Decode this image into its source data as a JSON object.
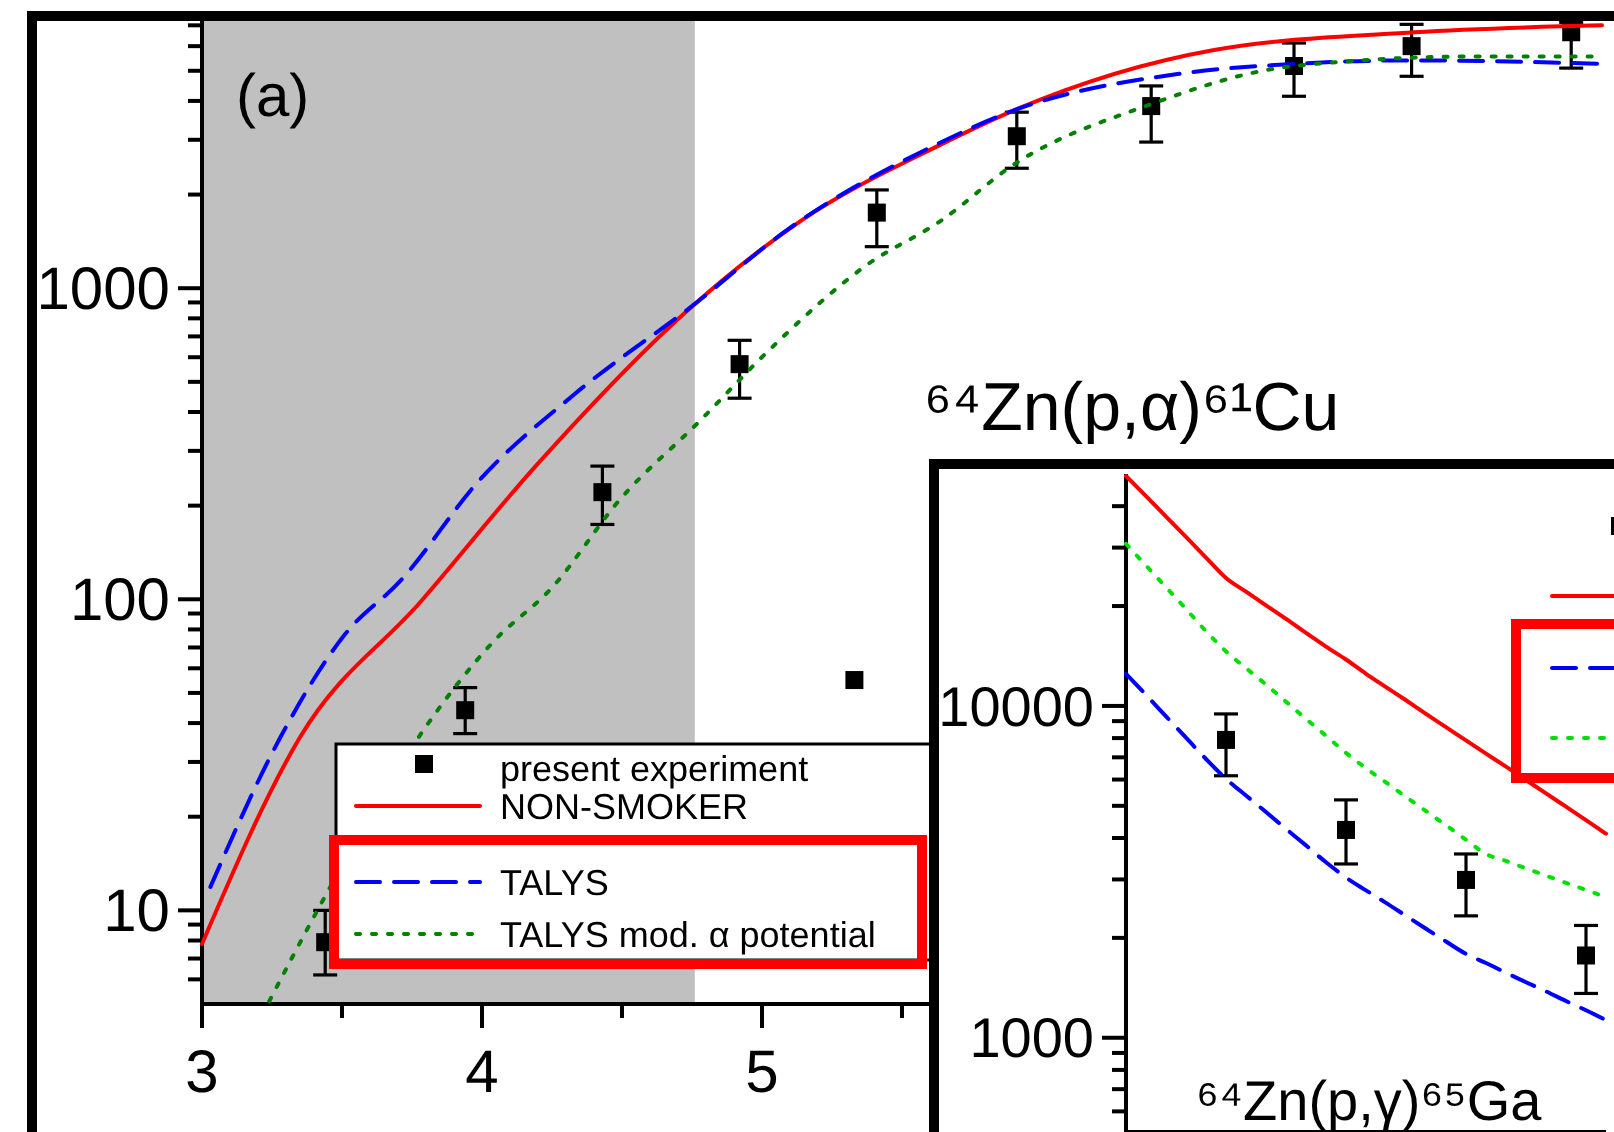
{
  "chart_data": [
    {
      "type": "line",
      "annotations": [
        "(a)",
        "⁶⁴Zn(p,α)⁶¹Cu"
      ],
      "log": "y",
      "legend": "bottom",
      "xlim": [
        3,
        8
      ],
      "xticks": [
        3,
        {
          "value": 3.5,
          "label": null
        },
        4,
        {
          "value": 4.5,
          "label": null
        },
        5,
        {
          "value": 5.5,
          "label": null
        }
      ],
      "ylim": [
        5,
        7500
      ],
      "yticks": [
        {
          "value": 6,
          "label": null
        },
        {
          "value": 7,
          "label": null
        },
        {
          "value": 8,
          "label": null
        },
        {
          "value": 9,
          "label": null
        },
        10,
        {
          "value": 20,
          "label": null
        },
        {
          "value": 30,
          "label": null
        },
        {
          "value": 40,
          "label": null
        },
        {
          "value": 50,
          "label": null
        },
        {
          "value": 60,
          "label": null
        },
        {
          "value": 70,
          "label": null
        },
        {
          "value": 80,
          "label": null
        },
        {
          "value": 90,
          "label": null
        },
        100,
        {
          "value": 200,
          "label": null
        },
        {
          "value": 300,
          "label": null
        },
        {
          "value": 400,
          "label": null
        },
        {
          "value": 500,
          "label": null
        },
        {
          "value": 600,
          "label": null
        },
        {
          "value": 700,
          "label": null
        },
        {
          "value": 800,
          "label": null
        },
        {
          "value": 900,
          "label": null
        },
        1000,
        {
          "value": 2000,
          "label": null
        },
        {
          "value": 3000,
          "label": null
        },
        {
          "value": 4000,
          "label": null
        },
        {
          "value": 5000,
          "label": null
        },
        {
          "value": 6000,
          "label": null
        },
        {
          "value": 7000,
          "label": null
        }
      ],
      "bands": [
        {
          "axis": "x",
          "from": 3,
          "to": 4.76,
          "color": "#c0c0c0"
        }
      ],
      "series": [
        {
          "type": "scatter",
          "name": "present experiment",
          "color": "#000000",
          "marker": "square",
          "x": [
            3.44,
            3.94,
            4.43,
            4.92,
            5.33,
            5.41,
            5.91,
            6.39,
            6.9,
            7.32,
            7.89
          ],
          "values": [
            7.9,
            44,
            221,
            570,
            55,
            1750,
            3080,
            3850,
            5180,
            6000,
            6650
          ],
          "errors": [
            [
              6.2,
              10
            ],
            [
              37,
              52
            ],
            [
              174,
              268
            ],
            [
              443,
              680
            ],
            null,
            [
              1360,
              2070
            ],
            [
              2430,
              3680
            ],
            [
              2950,
              4470
            ],
            [
              4140,
              6140
            ],
            [
              4800,
              7050
            ],
            [
              5100,
              7150
            ]
          ]
        },
        {
          "type": "line",
          "name": "NON-SMOKER",
          "color": "#ff0000",
          "line_style": "solid",
          "x": [
            3,
            3.35,
            3.78,
            4.19,
            4.76,
            5.14,
            5.64,
            5.9,
            6.61,
            7.33,
            8
          ],
          "values": [
            7.8,
            36,
            98,
            267,
            890,
            1650,
            2900,
            3730,
            5820,
            6650,
            7000
          ]
        },
        {
          "type": "line",
          "name": "TALYS",
          "color": "#0000ff",
          "line_style": "dashed",
          "x": [
            3.03,
            3.28,
            3.51,
            3.71,
            3.99,
            4.33,
            4.76,
            5.09,
            5.61,
            5.9,
            6.49,
            6.9,
            7.33,
            8
          ],
          "values": [
            11.9,
            36,
            77,
            115,
            241,
            456,
            890,
            1540,
            2860,
            3730,
            4890,
            5260,
            5400,
            5260
          ]
        },
        {
          "type": "line",
          "name": "TALYS mod. α potential",
          "color": "#008000",
          "line_style": "dotted",
          "x": [
            3.24,
            3.42,
            3.8,
            4.04,
            4.25,
            4.49,
            4.78,
            5.01,
            5.37,
            5.64,
            5.9,
            6.37,
            6.9,
            7.56,
            8
          ],
          "values": [
            5.1,
            10.3,
            39,
            73,
            109,
            208,
            376,
            613,
            1180,
            1650,
            2500,
            3850,
            5180,
            5560,
            5560
          ]
        }
      ]
    },
    {
      "type": "line",
      "annotations": [
        "⁶⁴Zn(p,γ)⁶⁵Ga"
      ],
      "log": "y",
      "legend": "top right",
      "tick_labels": "y",
      "categories": [
        null,
        null,
        null,
        null,
        null,
        null,
        null,
        null,
        null,
        null,
        null,
        null,
        null,
        null,
        null,
        null,
        null,
        null,
        null,
        null,
        null,
        null,
        null,
        null,
        null
      ],
      "ylim": [
        520,
        50000
      ],
      "yticks": [
        {
          "value": 600,
          "label": null
        },
        {
          "value": 700,
          "label": null
        },
        {
          "value": 800,
          "label": null
        },
        {
          "value": 900,
          "label": null
        },
        1000,
        {
          "value": 2000,
          "label": null
        },
        {
          "value": 3000,
          "label": null
        },
        {
          "value": 4000,
          "label": null
        },
        {
          "value": 5000,
          "label": null
        },
        {
          "value": 6000,
          "label": null
        },
        {
          "value": 7000,
          "label": null
        },
        {
          "value": 8000,
          "label": null
        },
        {
          "value": 9000,
          "label": null
        },
        10000,
        {
          "value": 20000,
          "label": null
        },
        {
          "value": 30000,
          "label": null
        },
        {
          "value": 40000,
          "label": null
        }
      ],
      "series": [
        {
          "type": "scatter",
          "color": "#000000",
          "marker": "square",
          "values": [
            null,
            null,
            null,
            null,
            null,
            7900,
            null,
            null,
            null,
            null,
            null,
            4230,
            null,
            null,
            null,
            null,
            null,
            2990,
            null,
            null,
            null,
            null,
            null,
            1770,
            null
          ],
          "errors": [
            null,
            null,
            null,
            null,
            null,
            [
              6160,
              9460
            ],
            null,
            null,
            null,
            null,
            null,
            [
              3340,
              5210
            ],
            null,
            null,
            null,
            null,
            null,
            [
              2330,
              3580
            ],
            null,
            null,
            null,
            null,
            null,
            [
              1360,
              2180
            ],
            null
          ]
        },
        {
          "type": "line",
          "color": "#ff0000",
          "line_style": "solid",
          "values": [
            49300,
            42900,
            37200,
            32300,
            28000,
            24300,
            22100,
            20100,
            18300,
            16600,
            15100,
            13800,
            12500,
            11400,
            10400,
            9460,
            8630,
            7870,
            7180,
            6560,
            5980,
            5450,
            4970,
            4530,
            4120
          ]
        },
        {
          "type": "line",
          "color": "#0000ff",
          "line_style": "dashed",
          "values": [
            12500,
            10800,
            9300,
            8020,
            6920,
            6030,
            5370,
            4790,
            4260,
            3800,
            3380,
            3040,
            2780,
            2550,
            2330,
            2130,
            1950,
            1790,
            1680,
            1570,
            1470,
            1380,
            1290,
            1210,
            1130
          ]
        },
        {
          "type": "line",
          "color": "#00e000",
          "line_style": "dotted",
          "values": [
            30800,
            26500,
            22800,
            19600,
            16800,
            14600,
            13000,
            11600,
            10300,
            9140,
            8130,
            7220,
            6490,
            5880,
            5320,
            4820,
            4370,
            3950,
            3580,
            3410,
            3240,
            3080,
            2930,
            2790,
            2650
          ]
        }
      ]
    }
  ]
}
